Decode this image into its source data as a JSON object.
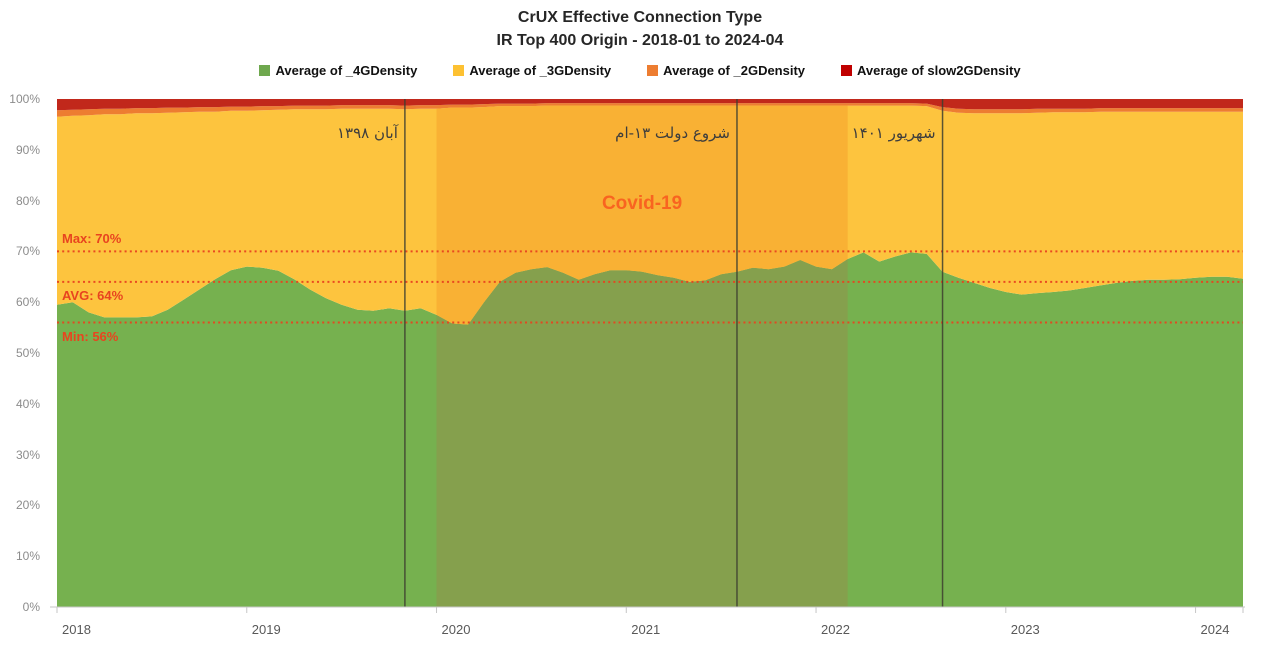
{
  "title": {
    "line1": "CrUX Effective Connection Type",
    "line2": "IR Top 400 Origin - 2018-01 to 2024-04"
  },
  "legend": {
    "items": [
      {
        "label": "Average of _4GDensity",
        "color": "#6fa84e"
      },
      {
        "label": "Average of _3GDensity",
        "color": "#fdc132"
      },
      {
        "label": "Average of _2GDensity",
        "color": "#ed7d31"
      },
      {
        "label": "Average of slow2GDensity",
        "color": "#c00000"
      }
    ]
  },
  "y_axis": {
    "ticks": [
      {
        "label": "100%",
        "value": 100
      },
      {
        "label": "90%",
        "value": 90
      },
      {
        "label": "80%",
        "value": 80
      },
      {
        "label": "70%",
        "value": 70
      },
      {
        "label": "60%",
        "value": 60
      },
      {
        "label": "50%",
        "value": 50
      },
      {
        "label": "40%",
        "value": 40
      },
      {
        "label": "30%",
        "value": 30
      },
      {
        "label": "20%",
        "value": 20
      },
      {
        "label": "10%",
        "value": 10
      },
      {
        "label": "0%",
        "value": 0
      }
    ]
  },
  "x_axis": {
    "ticks": [
      {
        "label": "2018",
        "date": "2018-01"
      },
      {
        "label": "2019",
        "date": "2019-01"
      },
      {
        "label": "2020",
        "date": "2020-01"
      },
      {
        "label": "2021",
        "date": "2021-01"
      },
      {
        "label": "2022",
        "date": "2022-01"
      },
      {
        "label": "2023",
        "date": "2023-01"
      },
      {
        "label": "2024",
        "date": "2024-01"
      }
    ]
  },
  "chart_data": {
    "type": "area",
    "stacked": true,
    "percent_stacked": true,
    "title": "CrUX Effective Connection Type — IR Top 400 Origin",
    "x_range": {
      "start": "2018-01",
      "end": "2024-04",
      "step": "month",
      "points": 76
    },
    "ylim": [
      0,
      100
    ],
    "grid": false,
    "legend_position": "top",
    "series": [
      {
        "name": "Average of _4GDensity",
        "color": "#76b14f",
        "values": [
          59.5,
          60.0,
          58.0,
          57.0,
          57.0,
          57.0,
          57.2,
          58.5,
          60.5,
          62.5,
          64.5,
          66.3,
          67.0,
          66.8,
          66.2,
          64.5,
          62.5,
          60.8,
          59.5,
          58.5,
          58.3,
          58.8,
          58.3,
          58.8,
          57.5,
          55.8,
          55.6,
          60.0,
          64.0,
          65.8,
          66.5,
          66.9,
          65.8,
          64.4,
          65.5,
          66.3,
          66.3,
          66.0,
          65.3,
          64.8,
          64.0,
          64.3,
          65.5,
          66.0,
          66.8,
          66.5,
          67.0,
          68.3,
          67.0,
          66.5,
          68.5,
          69.8,
          68.0,
          69.0,
          69.8,
          69.5,
          66.0,
          64.8,
          63.8,
          62.8,
          62.0,
          61.5,
          61.8,
          62.0,
          62.3,
          62.8,
          63.3,
          63.8,
          64.2,
          64.4,
          64.4,
          64.5,
          64.8,
          65.0,
          65.0,
          64.6
        ]
      },
      {
        "name": "Average of _3GDensity",
        "color": "#fdc43e",
        "values": [
          37.0,
          36.7,
          38.8,
          40.0,
          40.0,
          40.2,
          40.0,
          38.8,
          36.9,
          35.0,
          33.0,
          31.4,
          30.7,
          31.0,
          31.7,
          33.5,
          35.5,
          37.2,
          38.6,
          39.6,
          39.8,
          39.3,
          39.7,
          39.3,
          40.6,
          42.5,
          42.7,
          38.4,
          34.6,
          32.8,
          32.1,
          31.8,
          32.9,
          34.3,
          33.2,
          32.4,
          32.4,
          32.7,
          33.4,
          33.9,
          34.7,
          34.4,
          33.2,
          32.7,
          31.9,
          32.2,
          31.7,
          30.4,
          31.7,
          32.2,
          30.2,
          28.9,
          30.7,
          29.7,
          28.9,
          29.1,
          31.7,
          32.5,
          33.4,
          34.4,
          35.2,
          35.7,
          35.5,
          35.4,
          35.1,
          34.6,
          34.2,
          33.7,
          33.3,
          33.1,
          33.1,
          33.0,
          32.7,
          32.5,
          32.5,
          32.9
        ]
      },
      {
        "name": "Average of _2GDensity",
        "color": "#ed7d31",
        "values": [
          1.3,
          1.2,
          1.2,
          1.1,
          1.1,
          1.0,
          1.0,
          1.0,
          0.9,
          0.9,
          0.9,
          0.8,
          0.8,
          0.8,
          0.7,
          0.7,
          0.7,
          0.7,
          0.7,
          0.7,
          0.7,
          0.7,
          0.7,
          0.7,
          0.7,
          0.6,
          0.6,
          0.6,
          0.5,
          0.5,
          0.5,
          0.5,
          0.5,
          0.5,
          0.5,
          0.5,
          0.5,
          0.5,
          0.5,
          0.5,
          0.5,
          0.5,
          0.5,
          0.5,
          0.5,
          0.5,
          0.5,
          0.5,
          0.5,
          0.5,
          0.5,
          0.5,
          0.5,
          0.5,
          0.5,
          0.5,
          0.7,
          0.8,
          0.8,
          0.8,
          0.8,
          0.8,
          0.8,
          0.7,
          0.7,
          0.7,
          0.7,
          0.7,
          0.7,
          0.7,
          0.7,
          0.7,
          0.7,
          0.7,
          0.7,
          0.7
        ]
      },
      {
        "name": "Average of slow2GDensity",
        "color": "#c1281b",
        "values": [
          2.2,
          2.1,
          2.0,
          1.9,
          1.9,
          1.8,
          1.8,
          1.7,
          1.7,
          1.6,
          1.6,
          1.5,
          1.5,
          1.4,
          1.4,
          1.3,
          1.3,
          1.3,
          1.2,
          1.2,
          1.2,
          1.2,
          1.3,
          1.2,
          1.2,
          1.1,
          1.1,
          1.0,
          0.9,
          0.9,
          0.9,
          0.8,
          0.8,
          0.8,
          0.8,
          0.8,
          0.8,
          0.8,
          0.8,
          0.8,
          0.8,
          0.8,
          0.8,
          0.8,
          0.8,
          0.8,
          0.8,
          0.8,
          0.8,
          0.8,
          0.8,
          0.8,
          0.8,
          0.8,
          0.8,
          0.9,
          1.6,
          1.9,
          2.0,
          2.0,
          2.0,
          2.0,
          1.9,
          1.9,
          1.9,
          1.9,
          1.8,
          1.8,
          1.8,
          1.8,
          1.8,
          1.8,
          1.8,
          1.8,
          1.8,
          1.8
        ]
      }
    ],
    "annotations": {
      "vlines": [
        {
          "label": "آبان ۱۳۹۸",
          "date": "2019-11",
          "color": "#3e4030"
        },
        {
          "label": "شروع دولت ۱۳-ام",
          "date": "2021-08",
          "color": "#3e4030"
        },
        {
          "label": "شهریور ۱۴۰۱",
          "date": "2022-09",
          "color": "#3e4030"
        }
      ],
      "hlines": [
        {
          "label": "Max: 70%",
          "value": 70,
          "color": "#e8441f"
        },
        {
          "label": "AVG: 64%",
          "value": 64,
          "color": "#e8441f"
        },
        {
          "label": "Min: 56%",
          "value": 56,
          "color": "#e8441f"
        }
      ],
      "covid_region": {
        "label": "Covid-19",
        "from": "2020-01",
        "to": "2022-03",
        "label_color": "#f96420",
        "shaded_green": "#85a04d",
        "shaded_yellow": "#f9b134"
      }
    }
  }
}
